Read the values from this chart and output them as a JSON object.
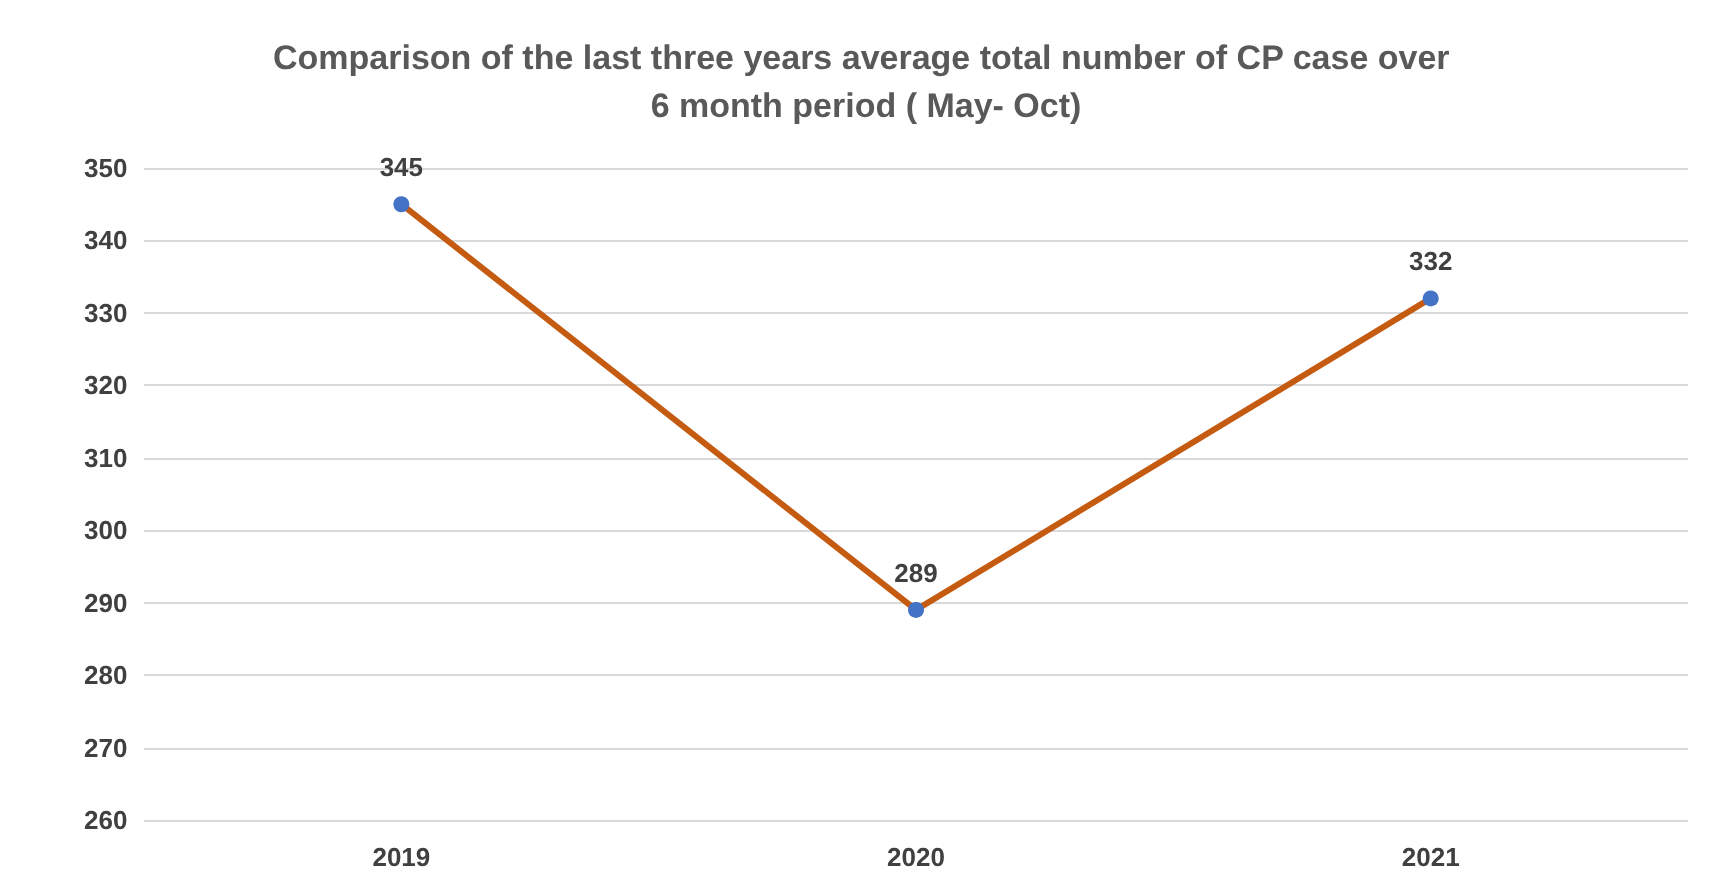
{
  "chart_data": {
    "type": "line",
    "title": "Comparison of the last three years average total number of CP case over 6 month period ( May- Oct)",
    "categories": [
      "2019",
      "2020",
      "2021"
    ],
    "series": [
      {
        "color": "#c55a11",
        "values": [
          345,
          289,
          332
        ]
      }
    ],
    "ylim": [
      260,
      350
    ],
    "yticks": [
      260,
      270,
      280,
      290,
      300,
      310,
      320,
      330,
      340,
      350
    ],
    "grid": "y",
    "data_labels": true,
    "marker": "circle",
    "line_style": "solid"
  }
}
